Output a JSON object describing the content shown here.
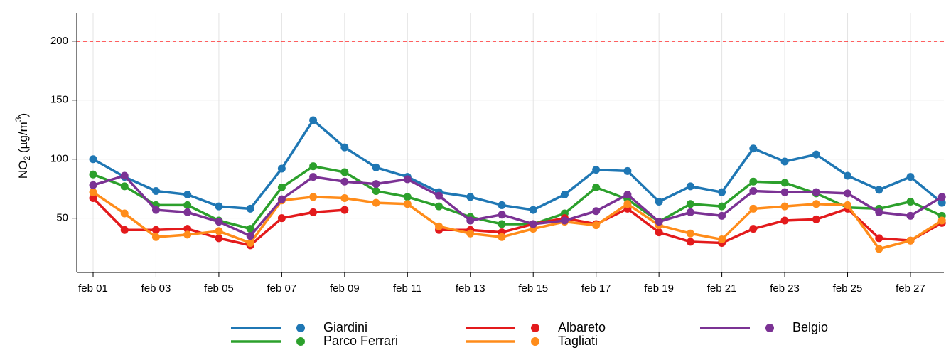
{
  "chart_data": {
    "type": "line",
    "y_label": {
      "text": "NO",
      "subscript": "2",
      "unit": "(µg/m",
      "superscript": "3",
      "close": ")"
    },
    "categories": [
      "feb 01",
      null,
      "feb 03",
      null,
      "feb 05",
      null,
      "feb 07",
      null,
      "feb 09",
      null,
      "feb 11",
      null,
      "feb 13",
      null,
      "feb 15",
      null,
      "feb 17",
      null,
      "feb 19",
      null,
      "feb 21",
      null,
      "feb 23",
      null,
      "feb 25",
      null,
      "feb 27",
      null
    ],
    "series": [
      {
        "name": "Giardini",
        "color": "#1f77b4",
        "values": [
          100,
          85,
          73,
          70,
          60,
          58,
          92,
          133,
          110,
          93,
          85,
          72,
          68,
          61,
          57,
          70,
          91,
          90,
          64,
          77,
          72,
          109,
          98,
          104,
          86,
          74,
          85,
          63
        ]
      },
      {
        "name": "Parco Ferrari",
        "color": "#2ca02c",
        "values": [
          87,
          77,
          61,
          61,
          48,
          41,
          76,
          94,
          89,
          73,
          68,
          60,
          51,
          45,
          45,
          54,
          76,
          66,
          47,
          62,
          60,
          81,
          80,
          71,
          59,
          58,
          64,
          52
        ]
      },
      {
        "name": "Albareto",
        "color": "#e31a1c",
        "values": [
          67,
          40,
          40,
          41,
          33,
          27,
          50,
          55,
          57,
          null,
          null,
          40,
          40,
          38,
          45,
          50,
          45,
          58,
          38,
          30,
          29,
          41,
          48,
          49,
          58,
          33,
          31,
          46
        ]
      },
      {
        "name": "Tagliati",
        "color": "#ff8c1a",
        "values": [
          72,
          54,
          34,
          36,
          39,
          29,
          65,
          68,
          67,
          63,
          62,
          43,
          37,
          34,
          41,
          47,
          44,
          62,
          44,
          37,
          32,
          58,
          60,
          62,
          61,
          24,
          31,
          48
        ]
      },
      {
        "name": "Belgio",
        "color": "#7b3294",
        "values": [
          78,
          86,
          57,
          55,
          47,
          35,
          66,
          85,
          81,
          79,
          83,
          69,
          48,
          53,
          45,
          48,
          56,
          70,
          47,
          55,
          52,
          73,
          72,
          72,
          71,
          55,
          52,
          68
        ]
      }
    ],
    "reference_line": {
      "value": 200,
      "color": "#ff0000"
    },
    "ylim": [
      4,
      224
    ],
    "yticks": [
      50,
      100,
      150,
      200
    ],
    "grid": true,
    "legend": "bottom"
  }
}
